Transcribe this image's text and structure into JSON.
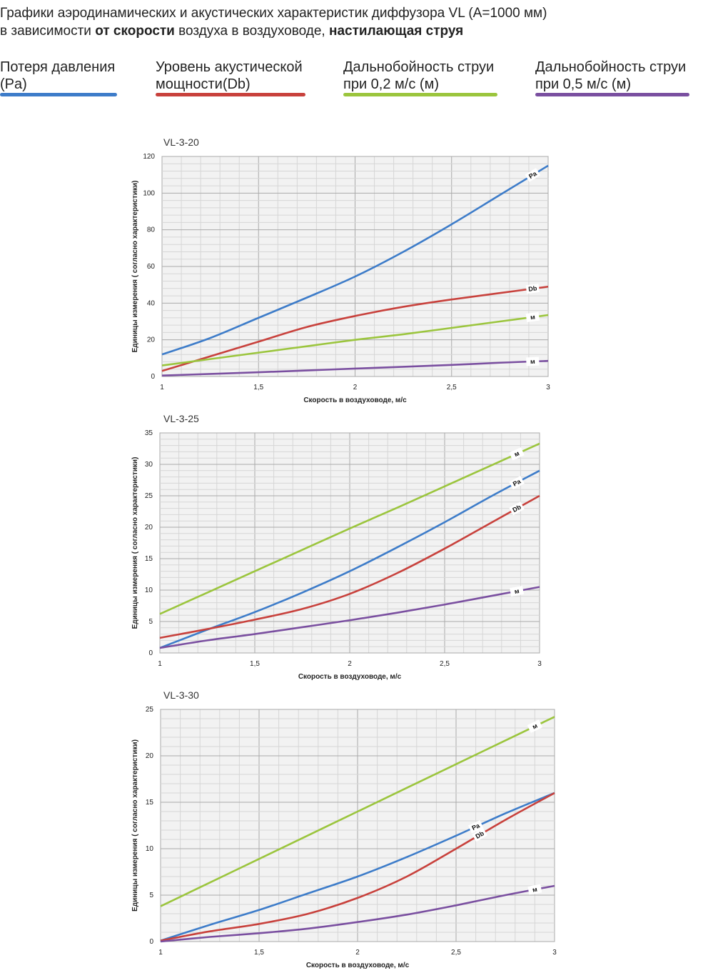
{
  "header": {
    "line1": "Графики аэродинамических и акустических характеристик  диффузора VL (А=1000 мм)",
    "line2_a": "в зависимости ",
    "line2_b": "от скорости",
    "line2_c": " воздуха в воздуховоде, ",
    "line2_d": "настилающая струя"
  },
  "legend": [
    {
      "line1": "Потеря давления",
      "line2": "(Pa)",
      "color": "#3d7cc9"
    },
    {
      "line1": "Уровень акустической",
      "line2": "мощности(Db)",
      "color": "#c8413c"
    },
    {
      "line1": "Дальнобойность струи",
      "line2": "при 0,2 м/с (м)",
      "color": "#9bc53d"
    },
    {
      "line1": "Дальнобойность струи",
      "line2": "при 0,5 м/с (м)",
      "color": "#7a4fa0"
    }
  ],
  "chart_data": [
    {
      "type": "line",
      "title": "VL-3-20",
      "xlabel": "Скорость в воздуховоде, м/с",
      "ylabel": "Единицы измерения ( согласно характеристики)",
      "xlim": [
        1,
        3
      ],
      "ylim": [
        0,
        120
      ],
      "xticks": [
        "1",
        "1,5",
        "2",
        "2,5",
        "3"
      ],
      "yticks": [
        "0",
        "20",
        "40",
        "60",
        "80",
        "100",
        "120"
      ],
      "grid": true,
      "x": [
        1,
        1.25,
        1.5,
        1.75,
        2,
        2.25,
        2.5,
        2.75,
        3
      ],
      "series": [
        {
          "name": "Pa",
          "color": "#3d7cc9",
          "values": [
            12,
            21,
            32,
            43,
            54.5,
            68,
            83,
            99,
            115
          ]
        },
        {
          "name": "Db",
          "color": "#c8413c",
          "values": [
            3,
            11,
            19,
            27,
            33,
            38,
            42,
            45.5,
            49
          ]
        },
        {
          "name": "м",
          "color": "#9bc53d",
          "values": [
            6,
            9.5,
            13,
            16.5,
            20,
            23,
            26.5,
            30,
            33.5
          ]
        },
        {
          "name": "м",
          "color": "#7a4fa0",
          "values": [
            0.5,
            1.4,
            2.3,
            3.3,
            4.3,
            5.3,
            6.3,
            7.5,
            8.5
          ]
        }
      ]
    },
    {
      "type": "line",
      "title": "VL-3-25",
      "xlabel": "Скорость в воздуховоде, м/с",
      "ylabel": "Единицы измерения ( согласно характеристики)",
      "xlim": [
        1,
        3
      ],
      "ylim": [
        0,
        35
      ],
      "xticks": [
        "1",
        "1,5",
        "2",
        "2,5",
        "3"
      ],
      "yticks": [
        "0",
        "5",
        "10",
        "15",
        "20",
        "25",
        "30",
        "35"
      ],
      "grid": true,
      "x": [
        1,
        1.25,
        1.5,
        1.75,
        2,
        2.25,
        2.5,
        2.75,
        3
      ],
      "series": [
        {
          "name": "м",
          "color": "#9bc53d",
          "values": [
            6.2,
            9.6,
            13,
            16.4,
            19.8,
            23.1,
            26.5,
            29.9,
            33.3
          ]
        },
        {
          "name": "Pa",
          "color": "#3d7cc9",
          "values": [
            0.8,
            3.7,
            6.5,
            9.6,
            13,
            16.8,
            20.8,
            25,
            29
          ]
        },
        {
          "name": "Db",
          "color": "#c8413c",
          "values": [
            2.4,
            3.8,
            5.3,
            7,
            9.4,
            12.7,
            16.6,
            20.8,
            25
          ]
        },
        {
          "name": "м",
          "color": "#7a4fa0",
          "values": [
            0.8,
            2,
            3,
            4.1,
            5.2,
            6.4,
            7.7,
            9.1,
            10.5
          ]
        }
      ]
    },
    {
      "type": "line",
      "title": "VL-3-30",
      "xlabel": "Скорость в воздуховоде, м/с",
      "ylabel": "Единицы измерения ( согласно характеристики)",
      "xlim": [
        1,
        3
      ],
      "ylim": [
        0,
        25
      ],
      "xticks": [
        "1",
        "1,5",
        "2",
        "2,5",
        "3"
      ],
      "yticks": [
        "0",
        "5",
        "10",
        "15",
        "20",
        "25"
      ],
      "grid": true,
      "x": [
        1,
        1.25,
        1.5,
        1.75,
        2,
        2.25,
        2.5,
        2.75,
        3
      ],
      "series": [
        {
          "name": "м",
          "color": "#9bc53d",
          "values": [
            3.8,
            6.35,
            8.9,
            11.45,
            14,
            16.55,
            19.1,
            21.65,
            24.2
          ]
        },
        {
          "name": "Pa",
          "color": "#3d7cc9",
          "values": [
            0.1,
            1.8,
            3.4,
            5.2,
            7,
            9.1,
            11.4,
            13.8,
            16
          ]
        },
        {
          "name": "Db",
          "color": "#c8413c",
          "values": [
            0.1,
            1.1,
            1.9,
            3,
            4.7,
            7,
            10,
            13.1,
            16
          ]
        },
        {
          "name": "м",
          "color": "#7a4fa0",
          "values": [
            0,
            0.5,
            0.9,
            1.4,
            2.1,
            2.9,
            3.9,
            5,
            6
          ]
        }
      ]
    }
  ]
}
